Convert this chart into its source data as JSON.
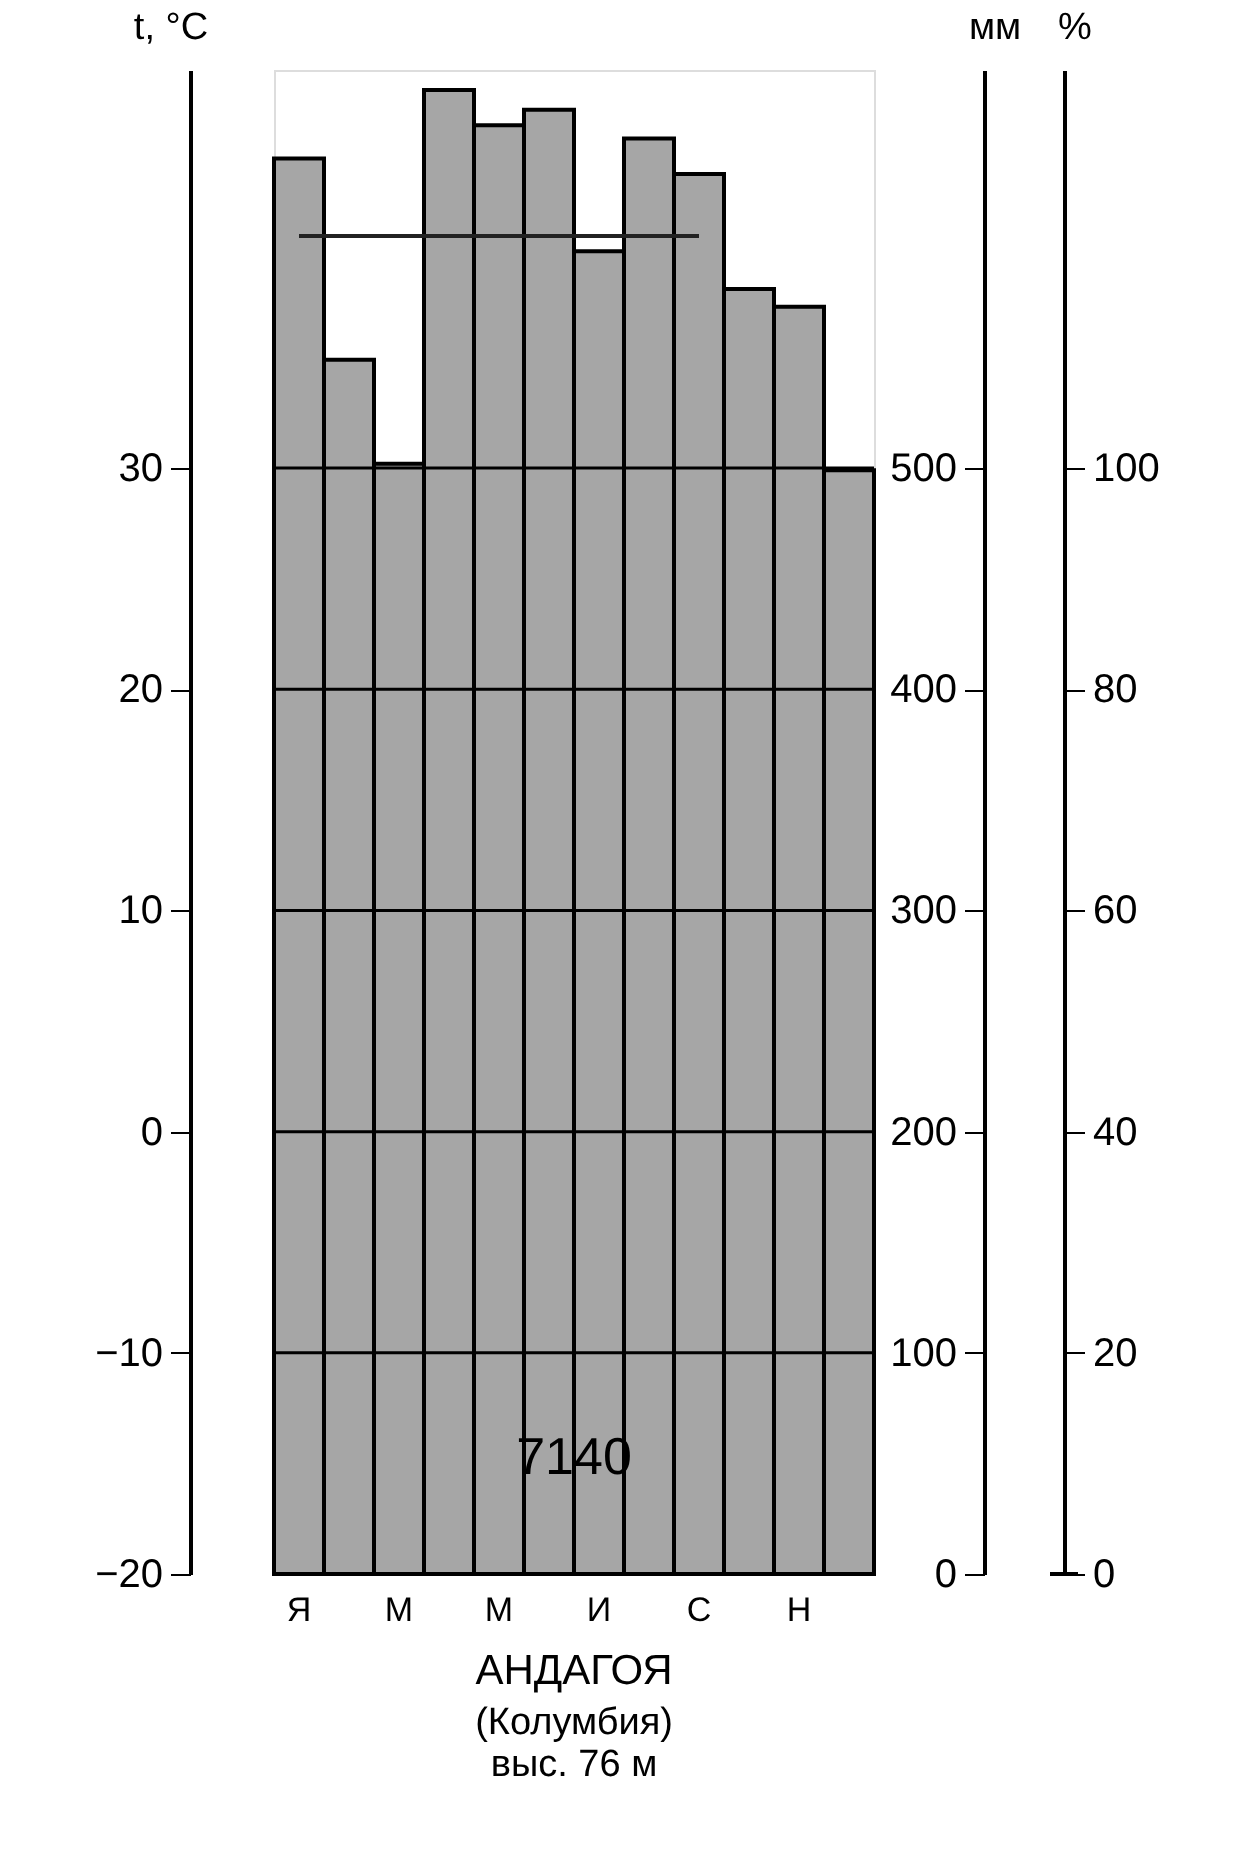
{
  "chart_data": {
    "type": "bar",
    "title": "АНДАГОЯ",
    "subtitle": "(Колумбия)",
    "categories": [
      "Я",
      null,
      "М",
      null,
      "М",
      null,
      "И",
      null,
      "С",
      null,
      "Н",
      null
    ],
    "series": [
      {
        "axis": "y2",
        "color": "#a6a6a6",
        "values": [
          640,
          549,
          502,
          671,
          655,
          662,
          598,
          649,
          633,
          581,
          573,
          499
        ]
      },
      {
        "type": "line",
        "axis": "y2",
        "color": "#222222",
        "values": [
          605,
          605,
          605,
          605,
          605,
          605,
          605,
          605,
          605,
          null,
          null,
          null
        ]
      }
    ],
    "ylabel": "t, °C",
    "y2label": "мм",
    "y3label": "%",
    "ylim": [
      -20,
      48
    ],
    "yticks": [
      -20,
      -10,
      0,
      10,
      20,
      30
    ],
    "y2lim": [
      0,
      680
    ],
    "y2ticks": [
      0,
      100,
      200,
      300,
      400,
      500
    ],
    "y3lim": [
      0,
      136
    ],
    "y3ticks": [
      0,
      20,
      40,
      60,
      80,
      100
    ],
    "grid": "y",
    "annotations": [
      "7140",
      "выс. 76 м"
    ]
  }
}
